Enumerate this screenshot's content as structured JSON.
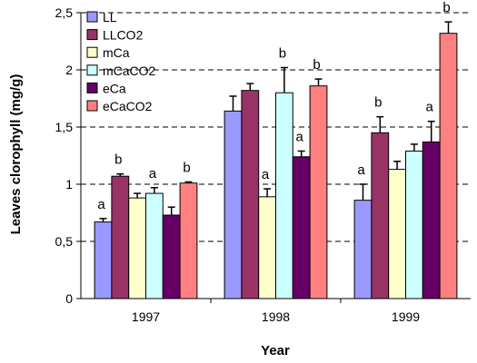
{
  "chart_data": {
    "type": "bar",
    "title": "",
    "xlabel": "Year",
    "ylabel": "Leaves clorophyll (mg/g)",
    "categories": [
      "1997",
      "1998",
      "1999"
    ],
    "ylim": [
      0,
      2.5
    ],
    "yticks": [
      "0",
      "0,5",
      "1",
      "1,5",
      "2",
      "2,5"
    ],
    "grid": "horizontal dashed",
    "legend_position": "top-left",
    "series": [
      {
        "name": "LL",
        "color": "#9999ff",
        "values": [
          0.67,
          1.64,
          0.86
        ],
        "errors": [
          0.03,
          0.13,
          0.14
        ],
        "letters": [
          "a",
          "",
          "a"
        ]
      },
      {
        "name": "LLCO2",
        "color": "#993366",
        "values": [
          1.07,
          1.82,
          1.45
        ],
        "errors": [
          0.02,
          0.06,
          0.14
        ],
        "letters": [
          "b",
          "",
          "b"
        ]
      },
      {
        "name": "mCa",
        "color": "#ffffcc",
        "values": [
          0.88,
          0.89,
          1.13
        ],
        "errors": [
          0.04,
          0.07,
          0.07
        ],
        "letters": [
          "",
          "a",
          ""
        ]
      },
      {
        "name": "mCaCO2",
        "color": "#ccffff",
        "values": [
          0.92,
          1.8,
          1.29
        ],
        "errors": [
          0.05,
          0.22,
          0.06
        ],
        "letters": [
          "a",
          "b",
          ""
        ]
      },
      {
        "name": "eCa",
        "color": "#660066",
        "values": [
          0.73,
          1.24,
          1.37
        ],
        "errors": [
          0.07,
          0.05,
          0.18
        ],
        "letters": [
          "",
          "a",
          "a"
        ]
      },
      {
        "name": "eCaCO2",
        "color": "#ff8080",
        "values": [
          1.01,
          1.86,
          2.32
        ],
        "errors": [
          0.01,
          0.06,
          0.1
        ],
        "letters": [
          "b",
          "b",
          "b"
        ]
      }
    ]
  }
}
